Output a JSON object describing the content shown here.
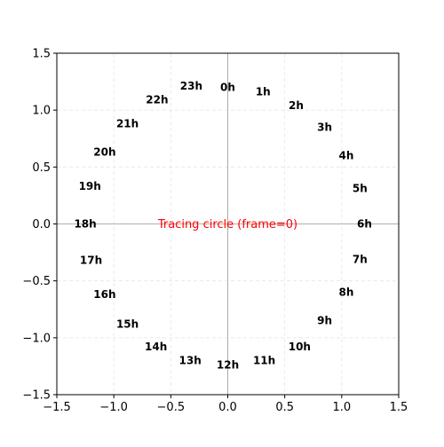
{
  "chart_data": {
    "type": "scatter",
    "title": "",
    "xlabel": "",
    "ylabel": "",
    "xlim": [
      -1.5,
      1.5
    ],
    "ylim": [
      -1.5,
      1.5
    ],
    "xticks": [
      -1.5,
      -1.0,
      -0.5,
      0.0,
      0.5,
      1.0,
      1.5
    ],
    "yticks": [
      -1.5,
      -1.0,
      -0.5,
      0.0,
      0.5,
      1.0,
      1.5
    ],
    "xtick_labels": [
      "−1.5",
      "−1.0",
      "−0.5",
      "0.0",
      "0.5",
      "1.0",
      "1.5"
    ],
    "ytick_labels": [
      "−1.5",
      "−1.0",
      "−0.5",
      "0.0",
      "0.5",
      "1.0",
      "1.5"
    ],
    "grid": true,
    "grid_style": "dashed",
    "zero_lines": true,
    "annotations": [
      {
        "text": "0h",
        "x": 0.0,
        "y": 1.2
      },
      {
        "text": "1h",
        "x": 0.31,
        "y": 1.16
      },
      {
        "text": "2h",
        "x": 0.6,
        "y": 1.04
      },
      {
        "text": "3h",
        "x": 0.85,
        "y": 0.85
      },
      {
        "text": "4h",
        "x": 1.04,
        "y": 0.6
      },
      {
        "text": "5h",
        "x": 1.16,
        "y": 0.31
      },
      {
        "text": "6h",
        "x": 1.2,
        "y": 0.0
      },
      {
        "text": "7h",
        "x": 1.16,
        "y": -0.31
      },
      {
        "text": "8h",
        "x": 1.04,
        "y": -0.6
      },
      {
        "text": "9h",
        "x": 0.85,
        "y": -0.85
      },
      {
        "text": "10h",
        "x": 0.63,
        "y": -1.08
      },
      {
        "text": "11h",
        "x": 0.32,
        "y": -1.2
      },
      {
        "text": "12h",
        "x": 0.0,
        "y": -1.24
      },
      {
        "text": "13h",
        "x": -0.33,
        "y": -1.2
      },
      {
        "text": "14h",
        "x": -0.63,
        "y": -1.08
      },
      {
        "text": "15h",
        "x": -0.88,
        "y": -0.88
      },
      {
        "text": "16h",
        "x": -1.08,
        "y": -0.62
      },
      {
        "text": "17h",
        "x": -1.2,
        "y": -0.32
      },
      {
        "text": "18h",
        "x": -1.25,
        "y": 0.0
      },
      {
        "text": "19h",
        "x": -1.21,
        "y": 0.33
      },
      {
        "text": "20h",
        "x": -1.08,
        "y": 0.63
      },
      {
        "text": "21h",
        "x": -0.88,
        "y": 0.88
      },
      {
        "text": "22h",
        "x": -0.62,
        "y": 1.09
      },
      {
        "text": "23h",
        "x": -0.32,
        "y": 1.21
      }
    ],
    "center_text": {
      "text": "Tracing circle (frame=0)",
      "x": 0.0,
      "y": 0.0,
      "color": "#ff0000"
    },
    "colors": {
      "axes": "#000000",
      "grid": "#e6e6e6",
      "zero_line": "#999999",
      "text": "#000000",
      "center_text": "#ff0000"
    }
  }
}
